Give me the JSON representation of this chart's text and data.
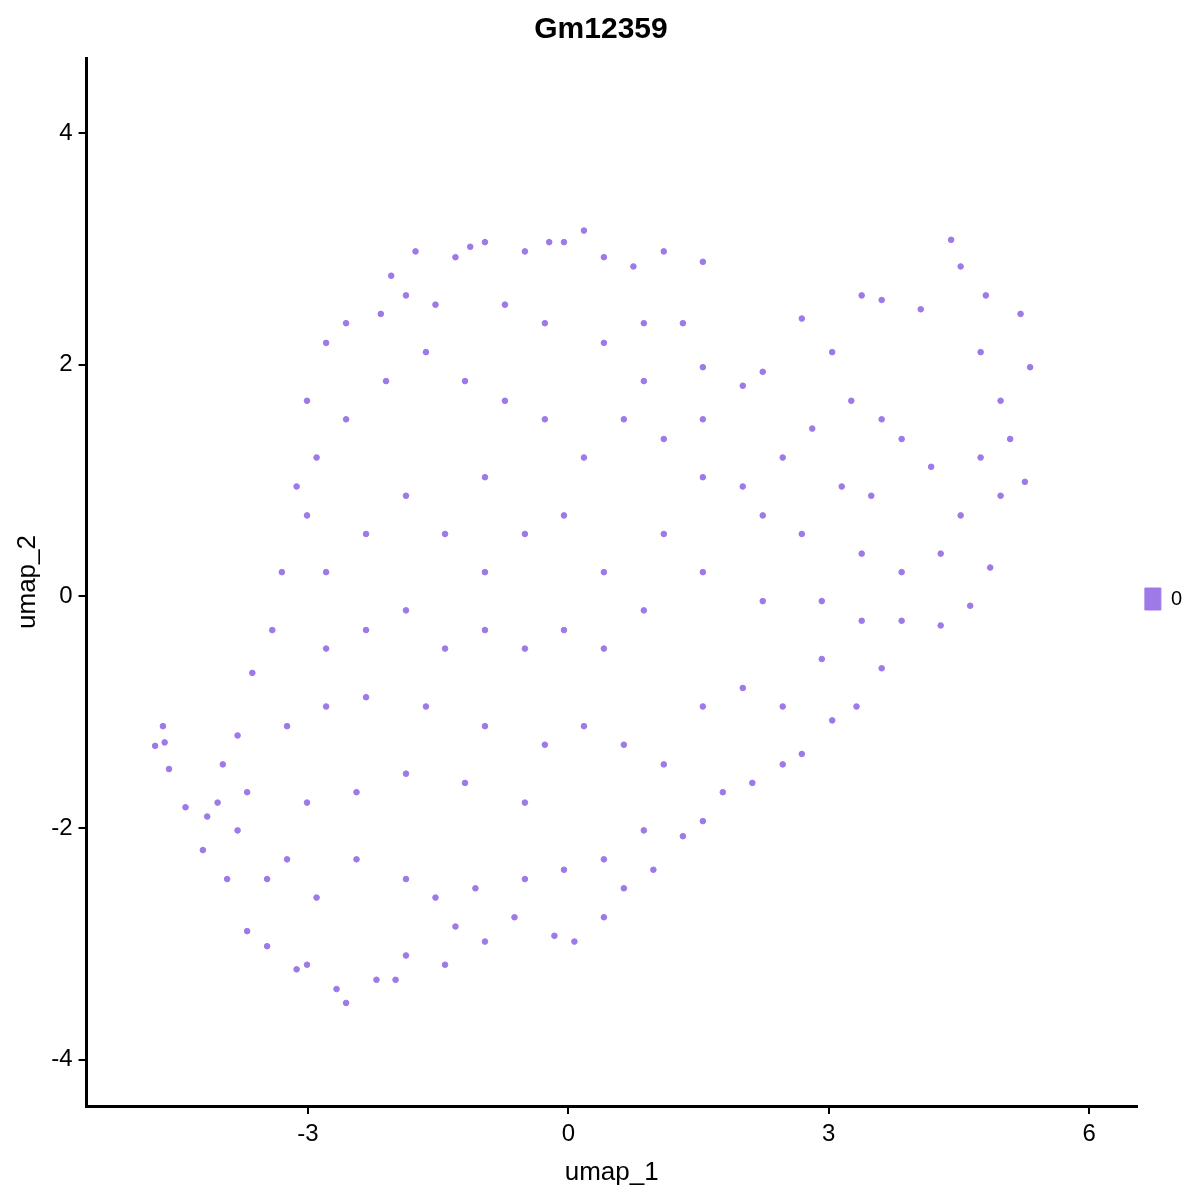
{
  "chart_data": {
    "type": "scatter",
    "title": "Gm12359",
    "xlabel": "umap_1",
    "ylabel": "umap_2",
    "marker": "circle",
    "grid": false,
    "legend": "right",
    "xlim": [
      -5.55,
      6.55
    ],
    "xticks": [
      -3,
      0,
      3,
      6
    ],
    "ylim": [
      -4.4,
      4.65
    ],
    "yticks": [
      -4,
      -2,
      0,
      2,
      4
    ],
    "x": [
      -4.67,
      -4.65,
      -4.6,
      -4.76,
      -4.41,
      -4.21,
      -4.16,
      -3.98,
      -3.81,
      -3.7,
      -3.64,
      -3.41,
      -3.3,
      -3.13,
      -3.01,
      -2.79,
      -2.56,
      -2.16,
      -2.04,
      -1.87,
      -1.76,
      -1.3,
      -1.13,
      -0.96,
      -0.5,
      -0.22,
      -0.05,
      0.18,
      0.41,
      0.75,
      1.1,
      1.55,
      1.32,
      0.87,
      1.55,
      2.01,
      2.24,
      2.69,
      3.04,
      3.38,
      3.61,
      4.06,
      4.41,
      4.52,
      4.81,
      5.21,
      5.32,
      5.09,
      5.26,
      4.98,
      4.86,
      4.63,
      4.29,
      3.84,
      3.61,
      3.32,
      3.04,
      2.69,
      2.47,
      2.12,
      1.78,
      1.55,
      1.32,
      0.98,
      0.64,
      0.41,
      0.07,
      -0.16,
      -0.62,
      -0.96,
      -1.3,
      -1.42,
      -1.87,
      -1.99,
      -2.21,
      -2.56,
      -2.67,
      -3.01,
      -3.13,
      -3.47,
      -3.7,
      -3.93,
      -4.04,
      -3.81,
      -3.47,
      -3.24,
      -2.9,
      -2.44,
      -1.87,
      -1.53,
      -1.07,
      -0.5,
      -0.05,
      0.41,
      0.87,
      -0.5,
      -1.19,
      -1.87,
      -2.44,
      -3.01,
      -3.24,
      -2.79,
      -2.33,
      -1.64,
      -0.96,
      -0.27,
      0.18,
      0.64,
      1.1,
      1.55,
      2.01,
      2.47,
      2.92,
      3.38,
      3.84,
      4.29,
      4.52,
      4.18,
      3.84,
      3.61,
      3.26,
      2.81,
      2.47,
      2.01,
      1.55,
      1.1,
      0.64,
      0.18,
      -0.27,
      -0.73,
      -1.19,
      -1.64,
      -2.1,
      -2.56,
      -2.9,
      -3.01,
      -2.79,
      -2.33,
      -1.87,
      -1.42,
      -0.96,
      -0.5,
      -0.05,
      0.41,
      0.87,
      0.41,
      -0.05,
      -0.5,
      -0.96,
      -1.42,
      -1.87,
      -2.33,
      -2.79,
      -0.96,
      -0.27,
      -0.73,
      -1.53,
      0.41,
      0.87,
      1.55,
      2.24,
      2.69,
      3.15,
      3.49,
      4.75,
      4.98,
      3.38,
      2.92,
      2.24,
      1.55,
      1.1,
      4.75
    ],
    "series": [
      {
        "name": "0",
        "color": "#9e7ae8",
        "values": [
          -1.12,
          -1.26,
          -1.49,
          -1.29,
          -1.82,
          -2.19,
          -1.9,
          -1.45,
          -1.2,
          -1.69,
          -0.66,
          -0.29,
          0.21,
          0.95,
          1.69,
          2.19,
          2.36,
          2.44,
          2.77,
          2.6,
          2.98,
          2.93,
          3.02,
          3.06,
          2.98,
          3.06,
          3.06,
          3.16,
          2.93,
          2.85,
          2.98,
          2.89,
          2.36,
          1.86,
          1.98,
          1.82,
          1.94,
          2.4,
          2.11,
          2.6,
          2.56,
          2.48,
          3.08,
          2.85,
          2.6,
          2.44,
          1.98,
          1.36,
          0.99,
          0.87,
          0.25,
          -0.08,
          -0.25,
          -0.21,
          -0.62,
          -0.95,
          -1.07,
          -1.36,
          -1.45,
          -1.61,
          -1.69,
          -1.94,
          -2.07,
          -2.36,
          -2.52,
          -2.77,
          -2.98,
          -2.93,
          -2.77,
          -2.98,
          -2.85,
          -3.18,
          -3.1,
          -3.31,
          -3.31,
          -3.51,
          -3.39,
          -3.18,
          -3.22,
          -3.02,
          -2.89,
          -2.44,
          -1.78,
          -2.02,
          -2.44,
          -2.27,
          -2.6,
          -2.27,
          -2.44,
          -2.6,
          -2.52,
          -2.44,
          -2.36,
          -2.27,
          -2.02,
          -1.78,
          -1.61,
          -1.53,
          -1.69,
          -1.78,
          -1.12,
          -0.95,
          -0.87,
          -0.95,
          -1.12,
          -1.28,
          -1.12,
          -1.28,
          -1.45,
          -0.95,
          -0.79,
          -0.95,
          -0.54,
          -0.21,
          0.21,
          0.37,
          0.7,
          1.12,
          1.36,
          1.53,
          1.69,
          1.45,
          1.2,
          0.95,
          1.03,
          1.36,
          1.53,
          1.2,
          1.53,
          1.69,
          1.86,
          2.11,
          1.86,
          1.53,
          1.2,
          0.7,
          0.21,
          0.54,
          0.87,
          0.54,
          0.21,
          0.54,
          0.7,
          0.21,
          -0.12,
          -0.45,
          -0.29,
          -0.45,
          -0.29,
          -0.45,
          -0.12,
          -0.29,
          -0.45,
          1.03,
          2.36,
          2.52,
          2.52,
          2.19,
          2.36,
          1.53,
          0.7,
          0.54,
          0.95,
          0.87,
          2.11,
          1.69,
          0.37,
          -0.04,
          -0.04,
          0.21,
          0.54,
          1.2
        ]
      }
    ]
  }
}
